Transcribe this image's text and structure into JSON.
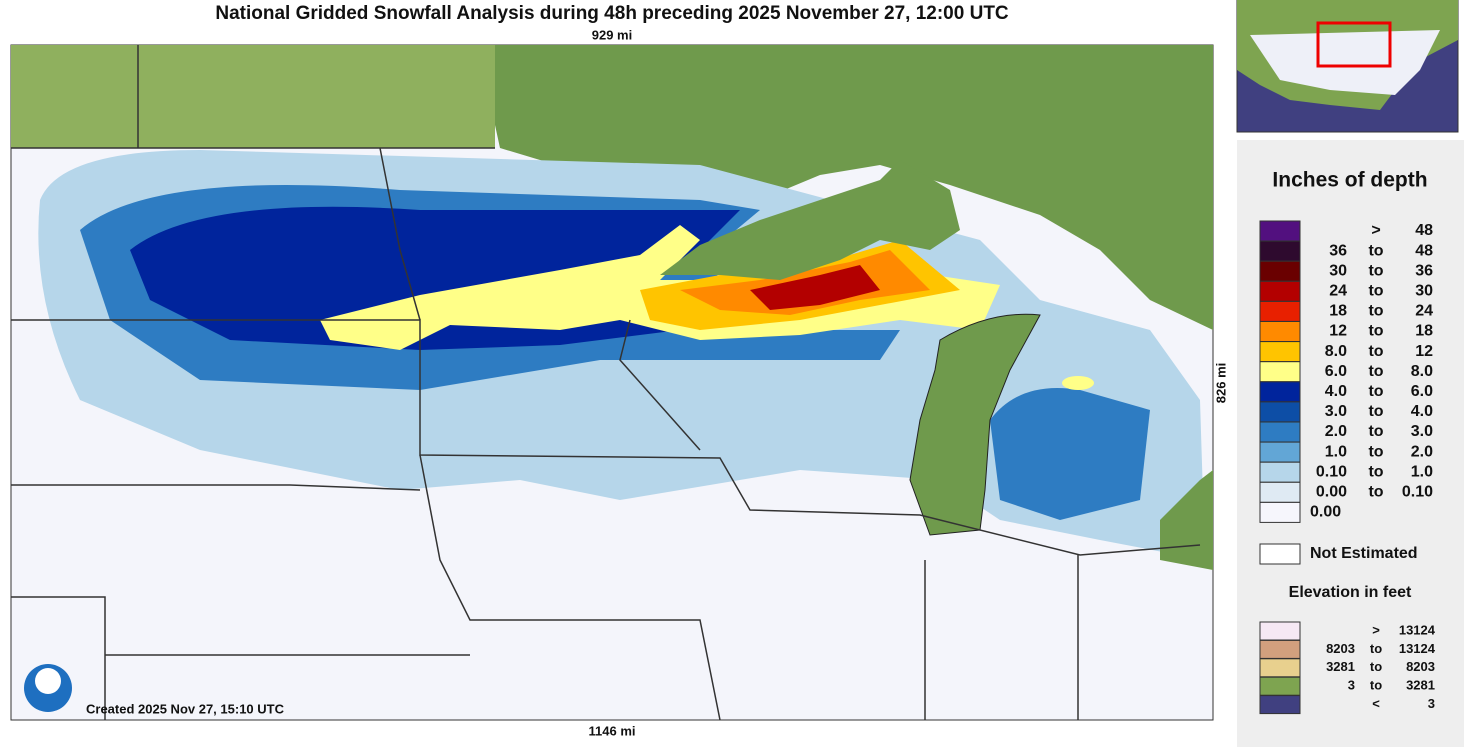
{
  "title": "National Gridded Snowfall Analysis during 48h preceding 2025 November 27, 12:00 UTC",
  "scale": {
    "top": "929 mi",
    "bottom": "1146 mi",
    "side": "826 mi"
  },
  "created": "Created 2025 Nov 27, 15:10 UTC",
  "snow_legend": {
    "title": "Inches of depth",
    "rows": [
      {
        "color": "#52107f",
        "sep": ">",
        "high": "48"
      },
      {
        "color": "#2e0a2e",
        "low": "36",
        "sep": "to",
        "high": "48"
      },
      {
        "color": "#6a0000",
        "low": "30",
        "sep": "to",
        "high": "36"
      },
      {
        "color": "#b30000",
        "low": "24",
        "sep": "to",
        "high": "30"
      },
      {
        "color": "#e82000",
        "low": "18",
        "sep": "to",
        "high": "24"
      },
      {
        "color": "#ff8a00",
        "low": "12",
        "sep": "to",
        "high": "18"
      },
      {
        "color": "#ffc400",
        "low": "8.0",
        "sep": "to",
        "high": "12"
      },
      {
        "color": "#ffff88",
        "low": "6.0",
        "sep": "to",
        "high": "8.0"
      },
      {
        "color": "#00249c",
        "low": "4.0",
        "sep": "to",
        "high": "6.0"
      },
      {
        "color": "#0d4ea6",
        "low": "3.0",
        "sep": "to",
        "high": "4.0"
      },
      {
        "color": "#2e7cc2",
        "low": "2.0",
        "sep": "to",
        "high": "3.0"
      },
      {
        "color": "#62a6d6",
        "low": "1.0",
        "sep": "to",
        "high": "2.0"
      },
      {
        "color": "#b6d6ea",
        "low": "0.10",
        "sep": "to",
        "high": "1.0"
      },
      {
        "color": "#dfeaf3",
        "low": "0.00",
        "sep": "to",
        "high": "0.10"
      },
      {
        "color": "#f6f6fc",
        "low": "0.00"
      }
    ],
    "not_estimated": "Not Estimated"
  },
  "elevation_legend": {
    "title": "Elevation in feet",
    "rows": [
      {
        "color": "#f6e8f4",
        "sep": ">",
        "high": "13124"
      },
      {
        "color": "#d2a07e",
        "low": "8203",
        "sep": "to",
        "high": "13124"
      },
      {
        "color": "#e8d08e",
        "low": "3281",
        "sep": "to",
        "high": "8203"
      },
      {
        "color": "#7ea450",
        "low": "3",
        "sep": "to",
        "high": "3281"
      },
      {
        "color": "#404080",
        "sep": "<",
        "high": "3"
      }
    ]
  }
}
